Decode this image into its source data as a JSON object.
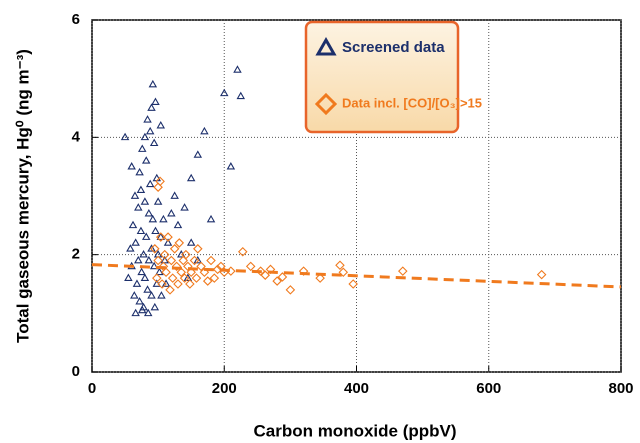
{
  "chart_data": {
    "type": "scatter",
    "xlabel": "Carbon monoxide (ppbV)",
    "ylabel": "Total gaseous mercury, Hg⁰ (ng m⁻³)",
    "xlim": [
      0,
      800
    ],
    "ylim": [
      0,
      6
    ],
    "xticks": [
      0,
      200,
      400,
      600,
      800
    ],
    "yticks": [
      0,
      2,
      4,
      6
    ],
    "grid": true,
    "legend": "upper right",
    "series": [
      {
        "name": "Screened data",
        "color": "#1c2f6b",
        "marker": "triangle",
        "x": [
          55,
          58,
          60,
          62,
          64,
          65,
          66,
          68,
          70,
          70,
          72,
          72,
          74,
          75,
          76,
          78,
          78,
          80,
          80,
          82,
          82,
          84,
          84,
          85,
          86,
          86,
          88,
          88,
          90,
          90,
          90,
          92,
          92,
          94,
          94,
          95,
          96,
          98,
          98,
          100,
          100,
          102,
          104,
          105,
          108,
          110,
          112,
          115,
          50,
          60,
          120,
          125,
          130,
          140,
          150,
          150,
          160,
          170,
          180,
          200,
          210,
          220,
          225,
          160,
          145,
          135,
          66,
          76,
          104,
          96,
          80,
          74
        ],
        "values": [
          1.6,
          2.1,
          1.8,
          2.5,
          1.3,
          3.0,
          2.2,
          1.5,
          2.8,
          1.9,
          3.4,
          1.2,
          2.4,
          1.7,
          3.8,
          2.0,
          1.1,
          2.9,
          1.6,
          3.6,
          2.3,
          4.3,
          1.4,
          1.0,
          2.7,
          1.9,
          4.1,
          3.2,
          2.1,
          1.3,
          4.5,
          4.9,
          2.6,
          1.8,
          3.9,
          1.1,
          2.4,
          3.3,
          1.5,
          2.0,
          2.9,
          1.7,
          2.3,
          1.3,
          2.6,
          1.9,
          1.5,
          2.2,
          4.0,
          3.5,
          2.7,
          3.0,
          2.5,
          2.8,
          3.3,
          2.2,
          3.7,
          4.1,
          2.6,
          4.75,
          3.5,
          5.15,
          4.7,
          1.9,
          1.6,
          2.0,
          1.0,
          1.05,
          4.2,
          4.6,
          4.0,
          3.1
        ]
      },
      {
        "name": "Data incl. [CO]/[O₃]>15",
        "color": "#f07a1e",
        "marker": "diamond",
        "x": [
          95,
          98,
          100,
          100,
          103,
          104,
          106,
          108,
          110,
          112,
          115,
          118,
          120,
          122,
          125,
          128,
          130,
          132,
          135,
          138,
          140,
          142,
          145,
          148,
          150,
          155,
          158,
          160,
          165,
          170,
          175,
          180,
          185,
          190,
          195,
          200,
          210,
          228,
          240,
          255,
          262,
          270,
          280,
          288,
          300,
          320,
          345,
          375,
          380,
          395,
          470,
          680
        ],
        "values": [
          2.1,
          1.6,
          1.9,
          3.15,
          3.25,
          2.3,
          1.5,
          1.8,
          2.0,
          1.7,
          2.3,
          1.4,
          1.9,
          1.6,
          2.1,
          1.8,
          1.5,
          2.2,
          1.7,
          1.9,
          1.6,
          2.0,
          1.8,
          1.5,
          1.7,
          1.9,
          1.6,
          2.1,
          1.8,
          1.7,
          1.55,
          1.9,
          1.6,
          1.75,
          1.8,
          1.7,
          1.72,
          2.05,
          1.8,
          1.72,
          1.65,
          1.75,
          1.55,
          1.62,
          1.4,
          1.72,
          1.6,
          1.82,
          1.7,
          1.5,
          1.72,
          1.66
        ]
      }
    ],
    "trend_line": {
      "x": [
        0,
        800
      ],
      "values": [
        1.83,
        1.45
      ],
      "color": "#f07a1e"
    }
  }
}
